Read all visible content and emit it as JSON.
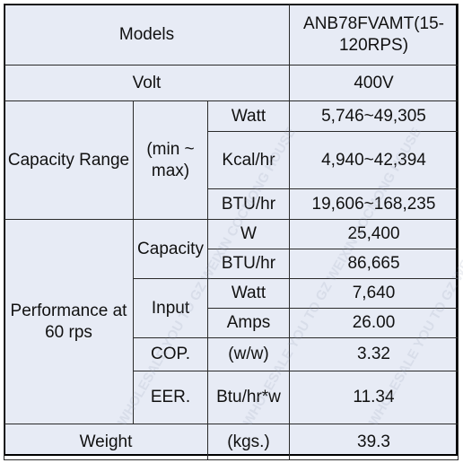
{
  "models_label": "Models",
  "model_name": "ANB78FVAMT(15-120RPS)",
  "volt_label": "Volt",
  "volt_value": "400V",
  "capacity_range": {
    "label": "Capacity Range",
    "subgroup": "(min ~ max)",
    "rows": [
      {
        "unit": "Watt",
        "value": "5,746~49,305"
      },
      {
        "unit": "Kcal/hr",
        "value": "4,940~42,394"
      },
      {
        "unit": "BTU/hr",
        "value": "19,606~168,235"
      }
    ]
  },
  "performance": {
    "label": "Performance at 60 rps",
    "capacity_label": "Capacity",
    "capacity_rows": [
      {
        "unit": "W",
        "value": "25,400"
      },
      {
        "unit": "BTU/hr",
        "value": "86,665"
      }
    ],
    "input_label": "Input",
    "input_rows": [
      {
        "unit": "Watt",
        "value": "7,640"
      },
      {
        "unit": "Amps",
        "value": "26.00"
      }
    ],
    "cop": {
      "label": "COP.",
      "unit": "(w/w)",
      "value": "3.32"
    },
    "eer": {
      "label": "EER.",
      "unit": "Btu/hr*w",
      "value": "11.34"
    }
  },
  "weight": {
    "label": "Weight",
    "unit": "(kgs.)",
    "value": "39.3"
  },
  "watermark_text": "WHOLESALE YOU TO GZ WEIXIN COCMONG HOUSE"
}
